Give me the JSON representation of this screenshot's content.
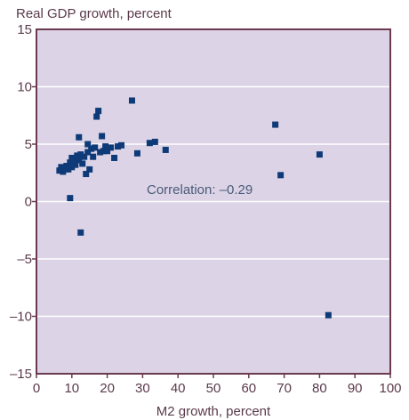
{
  "chart_data": {
    "type": "scatter",
    "title": "",
    "ylabel": "Real GDP growth, percent",
    "xlabel": "M2 growth, percent",
    "xlim": [
      0,
      100
    ],
    "ylim": [
      -15,
      15
    ],
    "xticks": [
      0,
      10,
      20,
      30,
      40,
      50,
      60,
      70,
      80,
      90,
      100
    ],
    "yticks": [
      -15,
      -10,
      -5,
      0,
      5,
      10,
      15
    ],
    "grid": "horizontal",
    "annotation": "Correlation: –0.29",
    "colors": {
      "plot_background": "#dcd4e6",
      "frame": "#6b3a50",
      "marker": "#0e3a78",
      "gridline": "#ffffff"
    },
    "series": [
      {
        "points": [
          [
            6.5,
            2.7
          ],
          [
            7.0,
            3.0
          ],
          [
            7.5,
            2.6
          ],
          [
            8.0,
            2.9
          ],
          [
            8.5,
            3.1
          ],
          [
            9.0,
            2.8
          ],
          [
            9.5,
            3.4
          ],
          [
            10.0,
            3.0
          ],
          [
            10.0,
            3.8
          ],
          [
            10.5,
            3.5
          ],
          [
            11.0,
            3.2
          ],
          [
            11.5,
            4.0
          ],
          [
            12.0,
            3.6
          ],
          [
            12.0,
            5.6
          ],
          [
            12.5,
            4.1
          ],
          [
            13.0,
            3.3
          ],
          [
            13.5,
            3.9
          ],
          [
            14.0,
            2.4
          ],
          [
            14.5,
            4.3
          ],
          [
            14.5,
            5.0
          ],
          [
            15.0,
            2.8
          ],
          [
            15.5,
            4.6
          ],
          [
            16.0,
            3.9
          ],
          [
            16.5,
            4.7
          ],
          [
            17.0,
            7.4
          ],
          [
            17.5,
            7.9
          ],
          [
            18.0,
            4.3
          ],
          [
            18.5,
            5.7
          ],
          [
            19.0,
            4.4
          ],
          [
            19.5,
            4.8
          ],
          [
            20.0,
            4.4
          ],
          [
            21.0,
            4.7
          ],
          [
            22.0,
            3.8
          ],
          [
            23.0,
            4.8
          ],
          [
            24.0,
            4.9
          ],
          [
            27.0,
            8.8
          ],
          [
            28.5,
            4.2
          ],
          [
            32.0,
            5.1
          ],
          [
            33.5,
            5.2
          ],
          [
            36.5,
            4.5
          ],
          [
            67.5,
            6.7
          ],
          [
            69.0,
            2.3
          ],
          [
            80.0,
            4.1
          ],
          [
            82.5,
            -9.9
          ],
          [
            9.5,
            0.3
          ],
          [
            12.5,
            -2.7
          ]
        ]
      }
    ]
  }
}
